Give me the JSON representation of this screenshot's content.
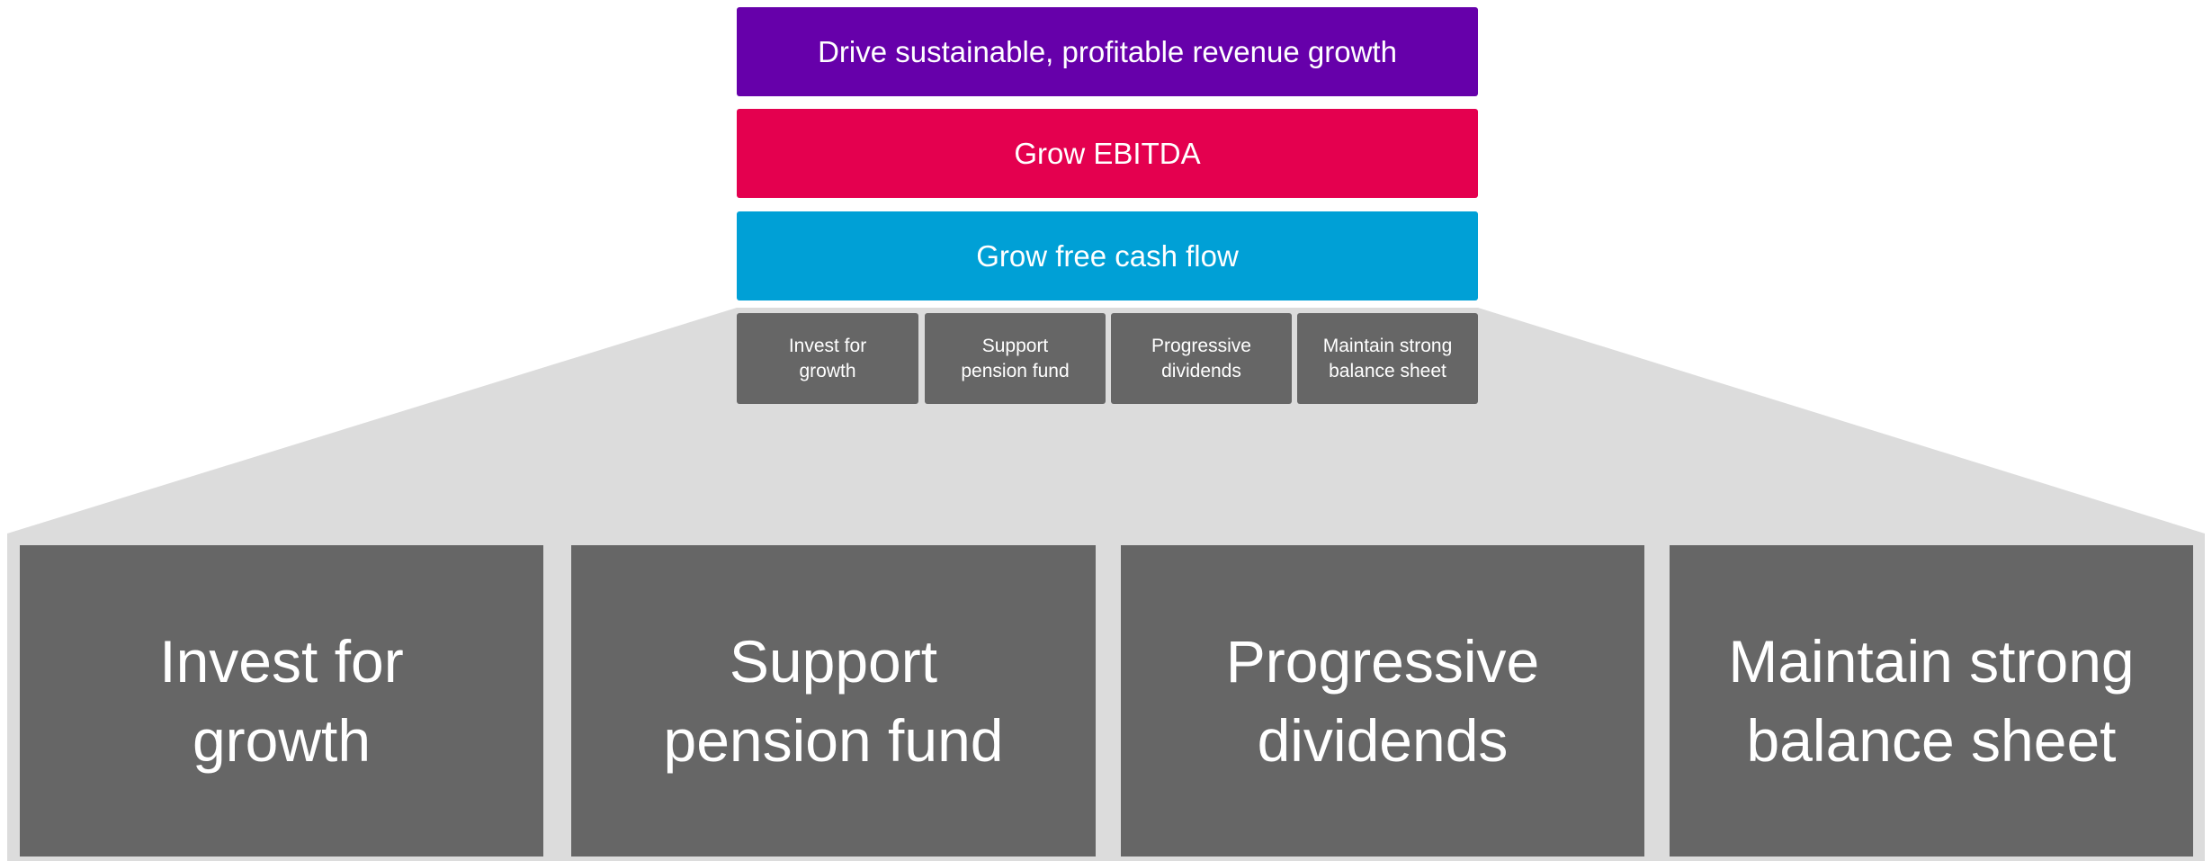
{
  "header_boxes": [
    {
      "label": "Drive sustainable, profitable revenue growth",
      "color": "#6600aa"
    },
    {
      "label": "Grow EBITDA",
      "color": "#e4004f"
    },
    {
      "label": "Grow free cash flow",
      "color": "#00a0d6"
    }
  ],
  "pillars": [
    {
      "lines": [
        "Invest for",
        "growth"
      ]
    },
    {
      "lines": [
        "Support",
        "pension fund"
      ]
    },
    {
      "lines": [
        "Progressive",
        "dividends"
      ]
    },
    {
      "lines": [
        "Maintain strong",
        "balance sheet"
      ]
    }
  ]
}
